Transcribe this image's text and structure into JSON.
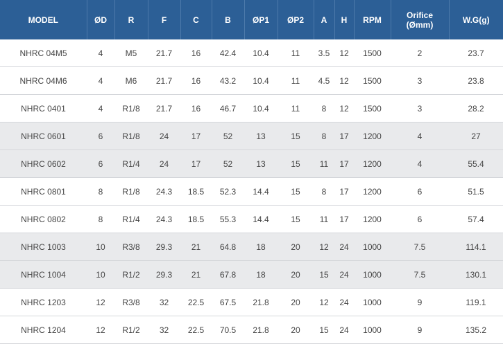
{
  "table": {
    "header": [
      "MODEL",
      "ØD",
      "R",
      "F",
      "C",
      "B",
      "ØP1",
      "ØP2",
      "A",
      "H",
      "RPM",
      "Orifice\n(Ømm)",
      "W.G(g)"
    ],
    "rows": [
      [
        "NHRC 04M5",
        "4",
        "M5",
        "21.7",
        "16",
        "42.4",
        "10.4",
        "11",
        "3.5",
        "12",
        "1500",
        "2",
        "23.7"
      ],
      [
        "NHRC 04M6",
        "4",
        "M6",
        "21.7",
        "16",
        "43.2",
        "10.4",
        "11",
        "4.5",
        "12",
        "1500",
        "3",
        "23.8"
      ],
      [
        "NHRC 0401",
        "4",
        "R1/8",
        "21.7",
        "16",
        "46.7",
        "10.4",
        "11",
        "8",
        "12",
        "1500",
        "3",
        "28.2"
      ],
      [
        "NHRC 0601",
        "6",
        "R1/8",
        "24",
        "17",
        "52",
        "13",
        "15",
        "8",
        "17",
        "1200",
        "4",
        "27"
      ],
      [
        "NHRC 0602",
        "6",
        "R1/4",
        "24",
        "17",
        "52",
        "13",
        "15",
        "11",
        "17",
        "1200",
        "4",
        "55.4"
      ],
      [
        "NHRC 0801",
        "8",
        "R1/8",
        "24.3",
        "18.5",
        "52.3",
        "14.4",
        "15",
        "8",
        "17",
        "1200",
        "6",
        "51.5"
      ],
      [
        "NHRC 0802",
        "8",
        "R1/4",
        "24.3",
        "18.5",
        "55.3",
        "14.4",
        "15",
        "11",
        "17",
        "1200",
        "6",
        "57.4"
      ],
      [
        "NHRC 1003",
        "10",
        "R3/8",
        "29.3",
        "21",
        "64.8",
        "18",
        "20",
        "12",
        "24",
        "1000",
        "7.5",
        "114.1"
      ],
      [
        "NHRC 1004",
        "10",
        "R1/2",
        "29.3",
        "21",
        "67.8",
        "18",
        "20",
        "15",
        "24",
        "1000",
        "7.5",
        "130.1"
      ],
      [
        "NHRC 1203",
        "12",
        "R3/8",
        "32",
        "22.5",
        "67.5",
        "21.8",
        "20",
        "12",
        "24",
        "1000",
        "9",
        "119.1"
      ],
      [
        "NHRC 1204",
        "12",
        "R1/2",
        "32",
        "22.5",
        "70.5",
        "21.8",
        "20",
        "15",
        "24",
        "1000",
        "9",
        "135.2"
      ]
    ]
  }
}
